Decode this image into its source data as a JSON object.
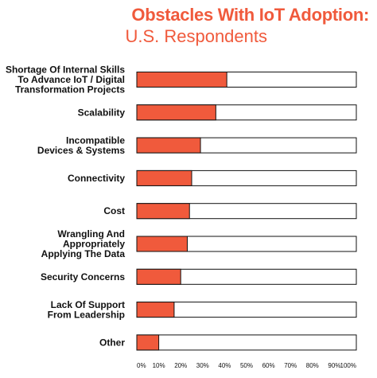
{
  "chart_data": {
    "type": "bar",
    "orientation": "horizontal",
    "title": "Obstacles With IoT Adoption:",
    "subtitle": "U.S. Respondents",
    "categories": [
      "Shortage Of Internal Skills To Advance IoT / Digital Transformation Projects",
      "Scalability",
      "Incompatible Devices & Systems",
      "Connectivity",
      "Cost",
      "Wrangling And Appropriately Applying The Data",
      "Security Concerns",
      "Lack Of Support From Leadership",
      "Other"
    ],
    "category_lines": [
      [
        "Shortage Of Internal Skills",
        "To Advance IoT / Digital",
        "Transformation Projects"
      ],
      [
        "Scalability"
      ],
      [
        "Incompatible",
        "Devices & Systems"
      ],
      [
        "Connectivity"
      ],
      [
        "Cost"
      ],
      [
        "Wrangling And",
        "Appropriately",
        "Applying The Data"
      ],
      [
        "Security Concerns"
      ],
      [
        "Lack Of Support",
        "From Leadership"
      ],
      [
        "Other"
      ]
    ],
    "values": [
      41,
      36,
      29,
      25,
      24,
      23,
      20,
      17,
      10
    ],
    "xlim": [
      0,
      100
    ],
    "xticks": [
      "0%",
      "10%",
      "20%",
      "30%",
      "40%",
      "50%",
      "60%",
      "70%",
      "80%",
      "90%",
      "100%"
    ],
    "grid": false,
    "legend": "none",
    "bar_color": "#f05a3c",
    "track_color": "#ffffff",
    "title_color": "#f05a3c"
  }
}
